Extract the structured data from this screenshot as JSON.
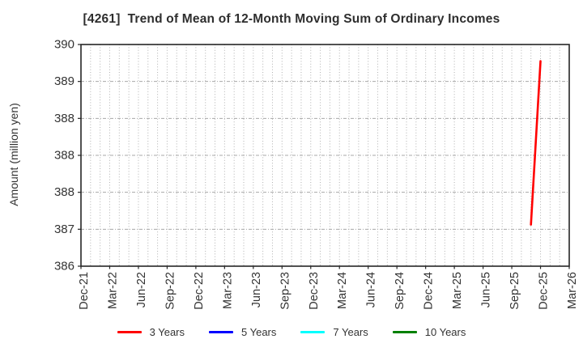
{
  "chart_data": {
    "type": "line",
    "title": "[4261]  Trend of Mean of 12-Month Moving Sum of Ordinary Incomes",
    "xlabel": "",
    "ylabel": "Amount (million yen)",
    "x_tick_labels": [
      "Dec-21",
      "Mar-22",
      "Jun-22",
      "Sep-22",
      "Dec-22",
      "Mar-23",
      "Jun-23",
      "Sep-23",
      "Dec-23",
      "Mar-24",
      "Jun-24",
      "Sep-24",
      "Dec-24",
      "Mar-25",
      "Jun-25",
      "Sep-25",
      "Dec-25",
      "Mar-26"
    ],
    "x_unit": "month",
    "y_axis": {
      "min": 386,
      "max": 390,
      "tick_labels_top_to_bottom": [
        "390",
        "389",
        "388",
        "388",
        "388",
        "387",
        "386"
      ]
    },
    "grid": {
      "vertical": "monthly dotted",
      "horizontal": "dashed at each y tick",
      "on": true
    },
    "legend_position": "bottom",
    "series": [
      {
        "name": "3 Years",
        "color": "#ff0000",
        "points": [
          {
            "month": "Nov-25",
            "value": 386.75
          },
          {
            "month": "Dec-25",
            "value": 389.7
          }
        ]
      },
      {
        "name": "5 Years",
        "color": "#0000ff",
        "points": []
      },
      {
        "name": "7 Years",
        "color": "#00ffff",
        "points": []
      },
      {
        "name": "10 Years",
        "color": "#008000",
        "points": []
      }
    ],
    "colors": {
      "spine": "#262626",
      "grid": "#b0b0b0",
      "tick_text": "#333333",
      "title_text": "#2e2e2e"
    }
  }
}
